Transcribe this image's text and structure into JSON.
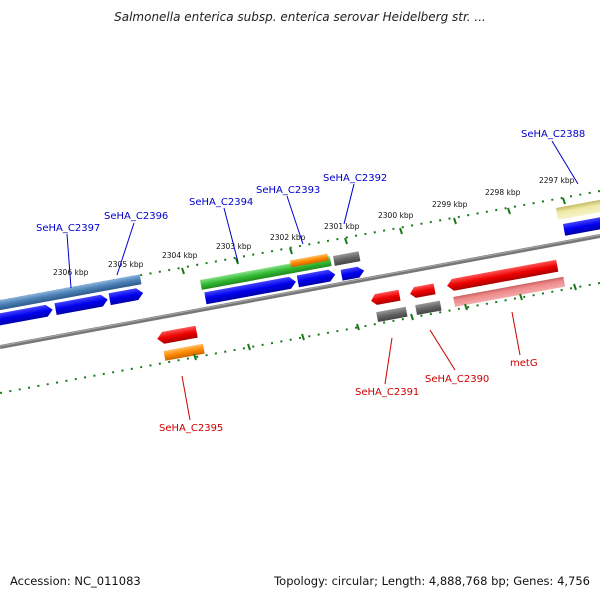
{
  "title": "Salmonella enterica subsp. enterica serovar Heidelberg str. ...",
  "footer": {
    "accession": "Accession: NC_011083",
    "summary": "Topology: circular; Length: 4,888,768 bp; Genes: 4,756"
  },
  "scale_labels": [
    "2306 kbp",
    "2305 kbp",
    "2304 kbp",
    "2303 kbp",
    "2302 kbp",
    "2301 kbp",
    "2300 kbp",
    "2299 kbp",
    "2298 kbp",
    "2297 kbp"
  ],
  "gene_labels": {
    "c2397": "SeHA_C2397",
    "c2396": "SeHA_C2396",
    "c2394": "SeHA_C2394",
    "c2393": "SeHA_C2393",
    "c2392": "SeHA_C2392",
    "c2388": "SeHA_C2388",
    "c2395": "SeHA_C2395",
    "c2391": "SeHA_C2391",
    "c2390": "SeHA_C2390",
    "metg": "metG"
  },
  "colors": {
    "forward_label": "#0000cc",
    "reverse_label": "#cc0000",
    "tick": "#1a7a1a",
    "backbone": "#777777",
    "cds_blue": "#0000ee",
    "cds_red": "#ee0000",
    "rna_gray": "#555555",
    "steelblue": "#4a7fb5",
    "green": "#33bb33",
    "orange": "#ff8800",
    "pink": "#ee8888",
    "khaki": "#d8d080"
  }
}
